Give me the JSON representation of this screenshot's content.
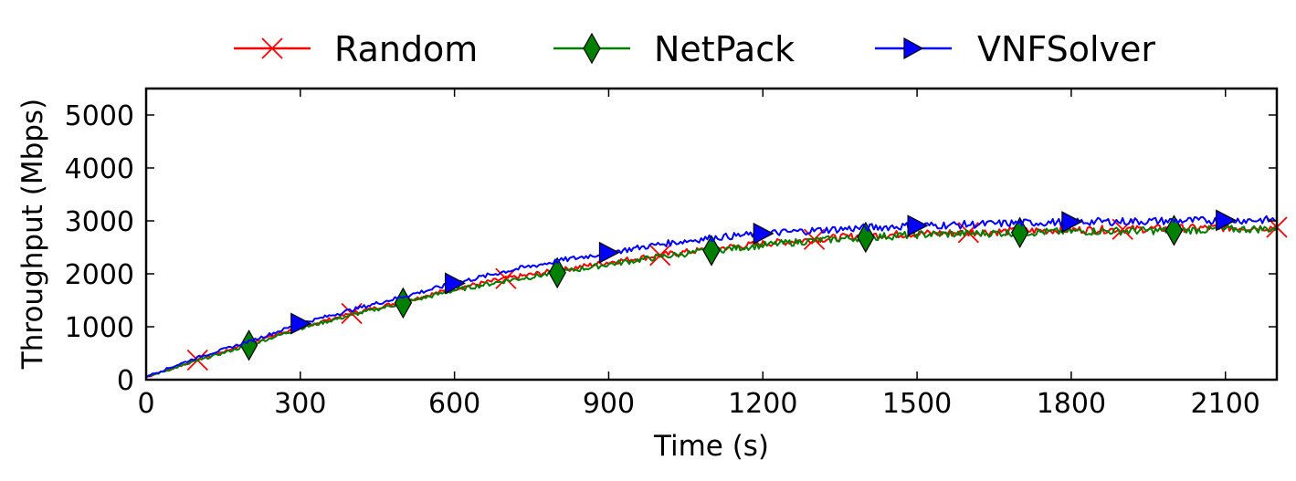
{
  "chart_data": {
    "type": "line",
    "title": "",
    "xlabel": "Time (s)",
    "ylabel": "Throughput (Mbps)",
    "xlim": [
      0,
      2200
    ],
    "ylim": [
      0,
      5500
    ],
    "xticks": [
      0,
      300,
      600,
      900,
      1200,
      1500,
      1800,
      2100
    ],
    "xtick_labels": [
      "0",
      "300",
      "600",
      "900",
      "1200",
      "1500",
      "1800",
      "2100"
    ],
    "yticks": [
      0,
      1000,
      2000,
      3000,
      4000,
      5000
    ],
    "ytick_labels": [
      "0",
      "1000",
      "2000",
      "3000",
      "4000",
      "5000"
    ],
    "legend_position": "top-center",
    "series": [
      {
        "name": "Random",
        "color": "#ff0000",
        "marker": "x",
        "x": [
          0,
          100,
          200,
          300,
          400,
          500,
          600,
          700,
          800,
          900,
          1000,
          1100,
          1200,
          1300,
          1400,
          1500,
          1600,
          1700,
          1800,
          1900,
          2000,
          2100,
          2200
        ],
        "values": [
          50,
          370,
          690,
          990,
          1250,
          1480,
          1720,
          1910,
          2060,
          2220,
          2350,
          2470,
          2570,
          2650,
          2720,
          2760,
          2780,
          2810,
          2830,
          2840,
          2860,
          2870,
          2880
        ],
        "marker_x": [
          100,
          400,
          700,
          1000,
          1300,
          1600,
          1900,
          2200
        ]
      },
      {
        "name": "NetPack",
        "color": "#008000",
        "marker": "diamond",
        "x": [
          0,
          100,
          200,
          300,
          400,
          500,
          600,
          700,
          800,
          900,
          1000,
          1100,
          1200,
          1300,
          1400,
          1500,
          1600,
          1700,
          1800,
          1900,
          2000,
          2100,
          2200
        ],
        "values": [
          50,
          360,
          650,
          970,
          1220,
          1450,
          1690,
          1870,
          2020,
          2180,
          2320,
          2440,
          2540,
          2630,
          2690,
          2740,
          2760,
          2780,
          2800,
          2810,
          2820,
          2840,
          2850
        ],
        "marker_x": [
          200,
          500,
          800,
          1100,
          1400,
          1700,
          2000
        ]
      },
      {
        "name": "VNFSolver",
        "color": "#0000ff",
        "marker": "triangle-right",
        "x": [
          0,
          100,
          200,
          300,
          400,
          500,
          600,
          700,
          800,
          900,
          1000,
          1100,
          1200,
          1300,
          1400,
          1500,
          1600,
          1700,
          1800,
          1900,
          2000,
          2100,
          2200
        ],
        "values": [
          60,
          420,
          720,
          1060,
          1320,
          1570,
          1820,
          2050,
          2240,
          2400,
          2560,
          2680,
          2760,
          2820,
          2870,
          2910,
          2930,
          2960,
          2980,
          2990,
          3000,
          3010,
          3020
        ],
        "marker_x": [
          300,
          600,
          900,
          1200,
          1500,
          1800,
          2100
        ]
      }
    ]
  }
}
